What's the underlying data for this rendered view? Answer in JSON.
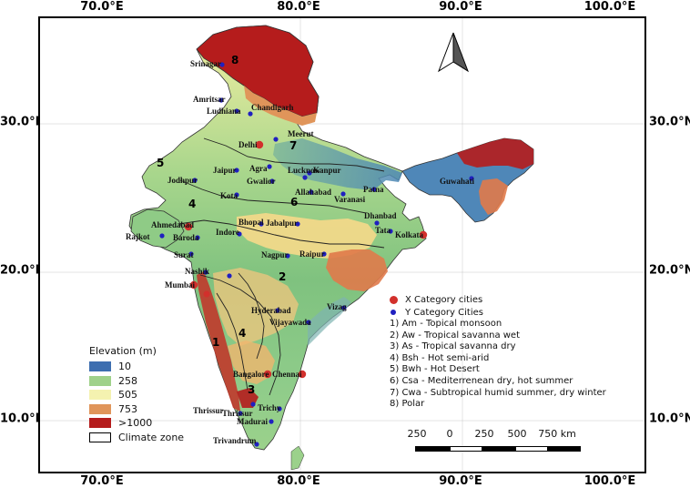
{
  "axes": {
    "top_ticks": [
      "70.0°E",
      "80.0°E",
      "90.0°E",
      "100.0°E"
    ],
    "bottom_ticks": [
      "70.0°E",
      "80.0°E",
      "90.0°E",
      "100.0°E"
    ],
    "left_ticks": [
      "30.0°N",
      "20.0°N",
      "10.0°N"
    ],
    "right_ticks": [
      "30.0°N",
      "20.0°N",
      "10.0°N"
    ]
  },
  "north_arrow": {
    "icon": "north-arrow-icon"
  },
  "cities": {
    "x_category": [
      "Delhi",
      "Ahmedabad",
      "Mumbai",
      "Kolkata",
      "Chennai",
      "Bengaluru"
    ],
    "y_category": [
      "Srinagar",
      "Amritsar",
      "Ludhiana",
      "Chandigarh",
      "Meerut",
      "Jodhpur",
      "Jaipur",
      "Agra",
      "Gwalior",
      "Lucknow",
      "Kanpur",
      "Kota",
      "Allahabad",
      "Varanasi",
      "Patna",
      "Guwahati",
      "Bhopal",
      "Jabalpur",
      "Dhanbad",
      "Indore",
      "Tata",
      "Rajkot",
      "Baroda",
      "Surat",
      "Nashik",
      "Nagpur",
      "Raipur",
      "Pune",
      "Hyderabad",
      "Vijayawada",
      "Vizag",
      "Trichy",
      "Thrissur",
      "Madurai",
      "Trivandrum"
    ]
  },
  "labels": [
    "Srinagar",
    "Amritsar",
    "Ludhiana",
    "Chandigarh",
    "Meerut",
    "Delhi",
    "Jodhpur",
    "Jaipur",
    "Agra",
    "Gwalior",
    "Lucknow",
    "Kanpur",
    "Kota",
    "Allahabad",
    "Varanasi",
    "Patna",
    "Guwahati",
    "Ahmedabad",
    "Rajkot",
    "Baroda",
    "Surat",
    "Bhopal",
    "Jabalpur",
    "Indore",
    "Dhanbad",
    "Tata",
    "Kolkata",
    "Nagpur",
    "Raipur",
    "Nashik",
    "Mumbai",
    "Hyderabad",
    "Vijayawada",
    "Vizag",
    "Bangalore",
    "Chennai",
    "Trichy",
    "Thrissur",
    "Thrissur",
    "Madurai",
    "Trivandrum"
  ],
  "climate_zone_numbers": [
    "8",
    "7",
    "5",
    "4",
    "6",
    "2",
    "1",
    "4",
    "3"
  ],
  "legend_elevation": {
    "title": "Elevation (m)",
    "items": [
      {
        "label": "10",
        "color": "#3d6eb0"
      },
      {
        "label": "258",
        "color": "#9fd18a"
      },
      {
        "label": "505",
        "color": "#f4f2b0"
      },
      {
        "label": "753",
        "color": "#e0955a"
      },
      {
        "label": ">1000",
        "color": "#b51c1c"
      }
    ],
    "zone_label": "Climate zone"
  },
  "legend_categories": {
    "x_label": "X Category cities",
    "x_color": "#d2302c",
    "y_label": "Y Category Cities",
    "y_color": "#2020c0",
    "zones": [
      "1) Am - Topical monsoon",
      "2) Aw  - Tropical savanna wet",
      "3) As - Tropical savanna dry",
      "4) Bsh - Hot semi-arid",
      "5) Bwh - Hot Desert",
      "6) Csa -  Mediterrenean dry, hot summer",
      "7) Cwa -  Subtropical humid summer, dry winter",
      "8)  Polar"
    ]
  },
  "scale_bar": {
    "labels": [
      "250",
      "0",
      "250",
      "500",
      "750 km"
    ]
  }
}
